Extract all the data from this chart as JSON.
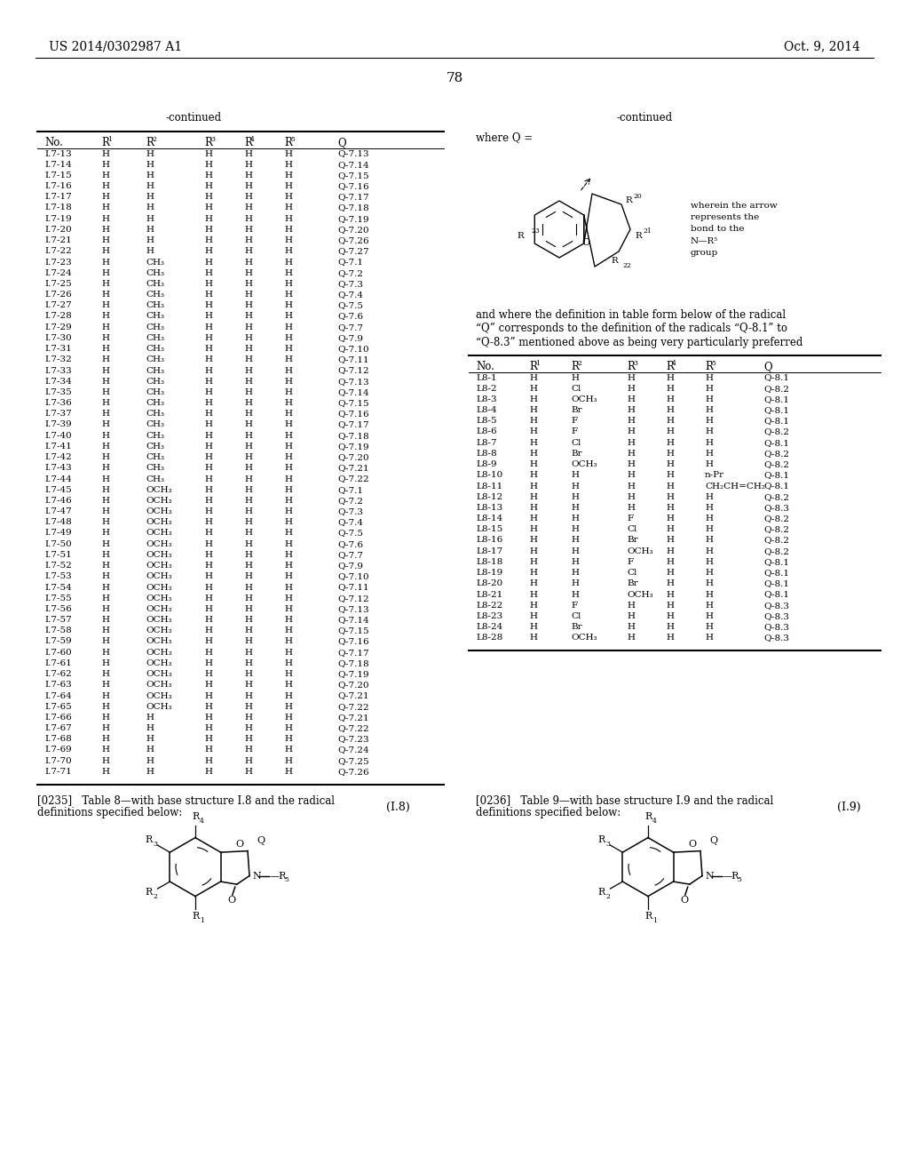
{
  "page_header_left": "US 2014/0302987 A1",
  "page_header_right": "Oct. 9, 2014",
  "page_number": "78",
  "continued_left": "-continued",
  "continued_right": "-continued",
  "left_table_rows": [
    [
      "I.7-13",
      "H",
      "H",
      "H",
      "H",
      "H",
      "Q-7.13"
    ],
    [
      "I.7-14",
      "H",
      "H",
      "H",
      "H",
      "H",
      "Q-7.14"
    ],
    [
      "I.7-15",
      "H",
      "H",
      "H",
      "H",
      "H",
      "Q-7.15"
    ],
    [
      "I.7-16",
      "H",
      "H",
      "H",
      "H",
      "H",
      "Q-7.16"
    ],
    [
      "I.7-17",
      "H",
      "H",
      "H",
      "H",
      "H",
      "Q-7.17"
    ],
    [
      "I.7-18",
      "H",
      "H",
      "H",
      "H",
      "H",
      "Q-7.18"
    ],
    [
      "I.7-19",
      "H",
      "H",
      "H",
      "H",
      "H",
      "Q-7.19"
    ],
    [
      "I.7-20",
      "H",
      "H",
      "H",
      "H",
      "H",
      "Q-7.20"
    ],
    [
      "I.7-21",
      "H",
      "H",
      "H",
      "H",
      "H",
      "Q-7.26"
    ],
    [
      "I.7-22",
      "H",
      "H",
      "H",
      "H",
      "H",
      "Q-7.27"
    ],
    [
      "I.7-23",
      "H",
      "CH₃",
      "H",
      "H",
      "H",
      "Q-7.1"
    ],
    [
      "I.7-24",
      "H",
      "CH₃",
      "H",
      "H",
      "H",
      "Q-7.2"
    ],
    [
      "I.7-25",
      "H",
      "CH₃",
      "H",
      "H",
      "H",
      "Q-7.3"
    ],
    [
      "I.7-26",
      "H",
      "CH₃",
      "H",
      "H",
      "H",
      "Q-7.4"
    ],
    [
      "I.7-27",
      "H",
      "CH₃",
      "H",
      "H",
      "H",
      "Q-7.5"
    ],
    [
      "I.7-28",
      "H",
      "CH₃",
      "H",
      "H",
      "H",
      "Q-7.6"
    ],
    [
      "I.7-29",
      "H",
      "CH₃",
      "H",
      "H",
      "H",
      "Q-7.7"
    ],
    [
      "I.7-30",
      "H",
      "CH₃",
      "H",
      "H",
      "H",
      "Q-7.9"
    ],
    [
      "I.7-31",
      "H",
      "CH₃",
      "H",
      "H",
      "H",
      "Q-7.10"
    ],
    [
      "I.7-32",
      "H",
      "CH₃",
      "H",
      "H",
      "H",
      "Q-7.11"
    ],
    [
      "I.7-33",
      "H",
      "CH₃",
      "H",
      "H",
      "H",
      "Q-7.12"
    ],
    [
      "I.7-34",
      "H",
      "CH₃",
      "H",
      "H",
      "H",
      "Q-7.13"
    ],
    [
      "I.7-35",
      "H",
      "CH₃",
      "H",
      "H",
      "H",
      "Q-7.14"
    ],
    [
      "I.7-36",
      "H",
      "CH₃",
      "H",
      "H",
      "H",
      "Q-7.15"
    ],
    [
      "I.7-37",
      "H",
      "CH₃",
      "H",
      "H",
      "H",
      "Q-7.16"
    ],
    [
      "I.7-39",
      "H",
      "CH₃",
      "H",
      "H",
      "H",
      "Q-7.17"
    ],
    [
      "I.7-40",
      "H",
      "CH₃",
      "H",
      "H",
      "H",
      "Q-7.18"
    ],
    [
      "I.7-41",
      "H",
      "CH₃",
      "H",
      "H",
      "H",
      "Q-7.19"
    ],
    [
      "I.7-42",
      "H",
      "CH₃",
      "H",
      "H",
      "H",
      "Q-7.20"
    ],
    [
      "I.7-43",
      "H",
      "CH₃",
      "H",
      "H",
      "H",
      "Q-7.21"
    ],
    [
      "I.7-44",
      "H",
      "CH₃",
      "H",
      "H",
      "H",
      "Q-7.22"
    ],
    [
      "I.7-45",
      "H",
      "OCH₃",
      "H",
      "H",
      "H",
      "Q-7.1"
    ],
    [
      "I.7-46",
      "H",
      "OCH₃",
      "H",
      "H",
      "H",
      "Q-7.2"
    ],
    [
      "I.7-47",
      "H",
      "OCH₃",
      "H",
      "H",
      "H",
      "Q-7.3"
    ],
    [
      "I.7-48",
      "H",
      "OCH₃",
      "H",
      "H",
      "H",
      "Q-7.4"
    ],
    [
      "I.7-49",
      "H",
      "OCH₃",
      "H",
      "H",
      "H",
      "Q-7.5"
    ],
    [
      "I.7-50",
      "H",
      "OCH₃",
      "H",
      "H",
      "H",
      "Q-7.6"
    ],
    [
      "I.7-51",
      "H",
      "OCH₃",
      "H",
      "H",
      "H",
      "Q-7.7"
    ],
    [
      "I.7-52",
      "H",
      "OCH₃",
      "H",
      "H",
      "H",
      "Q-7.9"
    ],
    [
      "I.7-53",
      "H",
      "OCH₃",
      "H",
      "H",
      "H",
      "Q-7.10"
    ],
    [
      "I.7-54",
      "H",
      "OCH₃",
      "H",
      "H",
      "H",
      "Q-7.11"
    ],
    [
      "I.7-55",
      "H",
      "OCH₃",
      "H",
      "H",
      "H",
      "Q-7.12"
    ],
    [
      "I.7-56",
      "H",
      "OCH₃",
      "H",
      "H",
      "H",
      "Q-7.13"
    ],
    [
      "I.7-57",
      "H",
      "OCH₃",
      "H",
      "H",
      "H",
      "Q-7.14"
    ],
    [
      "I.7-58",
      "H",
      "OCH₃",
      "H",
      "H",
      "H",
      "Q-7.15"
    ],
    [
      "I.7-59",
      "H",
      "OCH₃",
      "H",
      "H",
      "H",
      "Q-7.16"
    ],
    [
      "I.7-60",
      "H",
      "OCH₃",
      "H",
      "H",
      "H",
      "Q-7.17"
    ],
    [
      "I.7-61",
      "H",
      "OCH₃",
      "H",
      "H",
      "H",
      "Q-7.18"
    ],
    [
      "I.7-62",
      "H",
      "OCH₃",
      "H",
      "H",
      "H",
      "Q-7.19"
    ],
    [
      "I.7-63",
      "H",
      "OCH₃",
      "H",
      "H",
      "H",
      "Q-7.20"
    ],
    [
      "I.7-64",
      "H",
      "OCH₃",
      "H",
      "H",
      "H",
      "Q-7.21"
    ],
    [
      "I.7-65",
      "H",
      "OCH₃",
      "H",
      "H",
      "H",
      "Q-7.22"
    ],
    [
      "I.7-66",
      "H",
      "H",
      "H",
      "H",
      "H",
      "Q-7.21"
    ],
    [
      "I.7-67",
      "H",
      "H",
      "H",
      "H",
      "H",
      "Q-7.22"
    ],
    [
      "I.7-68",
      "H",
      "H",
      "H",
      "H",
      "H",
      "Q-7.23"
    ],
    [
      "I.7-69",
      "H",
      "H",
      "H",
      "H",
      "H",
      "Q-7.24"
    ],
    [
      "I.7-70",
      "H",
      "H",
      "H",
      "H",
      "H",
      "Q-7.25"
    ],
    [
      "I.7-71",
      "H",
      "H",
      "H",
      "H",
      "H",
      "Q-7.26"
    ]
  ],
  "right_table_rows": [
    [
      "L8-1",
      "H",
      "H",
      "H",
      "H",
      "H",
      "Q-8.1"
    ],
    [
      "L8-2",
      "H",
      "Cl",
      "H",
      "H",
      "H",
      "Q-8.2"
    ],
    [
      "L8-3",
      "H",
      "OCH₃",
      "H",
      "H",
      "H",
      "Q-8.1"
    ],
    [
      "L8-4",
      "H",
      "Br",
      "H",
      "H",
      "H",
      "Q-8.1"
    ],
    [
      "L8-5",
      "H",
      "F",
      "H",
      "H",
      "H",
      "Q-8.1"
    ],
    [
      "L8-6",
      "H",
      "F",
      "H",
      "H",
      "H",
      "Q-8.2"
    ],
    [
      "L8-7",
      "H",
      "Cl",
      "H",
      "H",
      "H",
      "Q-8.1"
    ],
    [
      "L8-8",
      "H",
      "Br",
      "H",
      "H",
      "H",
      "Q-8.2"
    ],
    [
      "L8-9",
      "H",
      "OCH₃",
      "H",
      "H",
      "H",
      "Q-8.2"
    ],
    [
      "L8-10",
      "H",
      "H",
      "H",
      "H",
      "n-Pr",
      "Q-8.1"
    ],
    [
      "L8-11",
      "H",
      "H",
      "H",
      "H",
      "CH₂CH=CH₂",
      "Q-8.1"
    ],
    [
      "L8-12",
      "H",
      "H",
      "H",
      "H",
      "H",
      "Q-8.2"
    ],
    [
      "L8-13",
      "H",
      "H",
      "H",
      "H",
      "H",
      "Q-8.3"
    ],
    [
      "L8-14",
      "H",
      "H",
      "F",
      "H",
      "H",
      "Q-8.2"
    ],
    [
      "L8-15",
      "H",
      "H",
      "Cl",
      "H",
      "H",
      "Q-8.2"
    ],
    [
      "L8-16",
      "H",
      "H",
      "Br",
      "H",
      "H",
      "Q-8.2"
    ],
    [
      "L8-17",
      "H",
      "H",
      "OCH₃",
      "H",
      "H",
      "Q-8.2"
    ],
    [
      "L8-18",
      "H",
      "H",
      "F",
      "H",
      "H",
      "Q-8.1"
    ],
    [
      "L8-19",
      "H",
      "H",
      "Cl",
      "H",
      "H",
      "Q-8.1"
    ],
    [
      "L8-20",
      "H",
      "H",
      "Br",
      "H",
      "H",
      "Q-8.1"
    ],
    [
      "L8-21",
      "H",
      "H",
      "OCH₃",
      "H",
      "H",
      "Q-8.1"
    ],
    [
      "L8-22",
      "H",
      "F",
      "H",
      "H",
      "H",
      "Q-8.3"
    ],
    [
      "L8-23",
      "H",
      "Cl",
      "H",
      "H",
      "H",
      "Q-8.3"
    ],
    [
      "L8-24",
      "H",
      "Br",
      "H",
      "H",
      "H",
      "Q-8.3"
    ],
    [
      "L8-28",
      "H",
      "OCH₃",
      "H",
      "H",
      "H",
      "Q-8.3"
    ]
  ],
  "paragraph_0235": "[0235]   Table 8—with base structure I.8 and the radical\ndefinitions specified below:",
  "paragraph_0236": "[0236]   Table 9—with base structure I.9 and the radical\ndefinitions specified below:",
  "where_q_text": "where Q =",
  "arrow_note": "wherein the arrow\nrepresents the\nbond to the\nN—R⁵\ngroup",
  "def_text_line1": "and where the definition in table form below of the radical",
  "def_text_line2": "“Q” corresponds to the definition of the radicals “Q-8.1” to",
  "def_text_line3": "“Q-8.3” mentioned above as being very particularly preferred",
  "label_I8": "(I.8)",
  "label_I9": "(I.9)"
}
